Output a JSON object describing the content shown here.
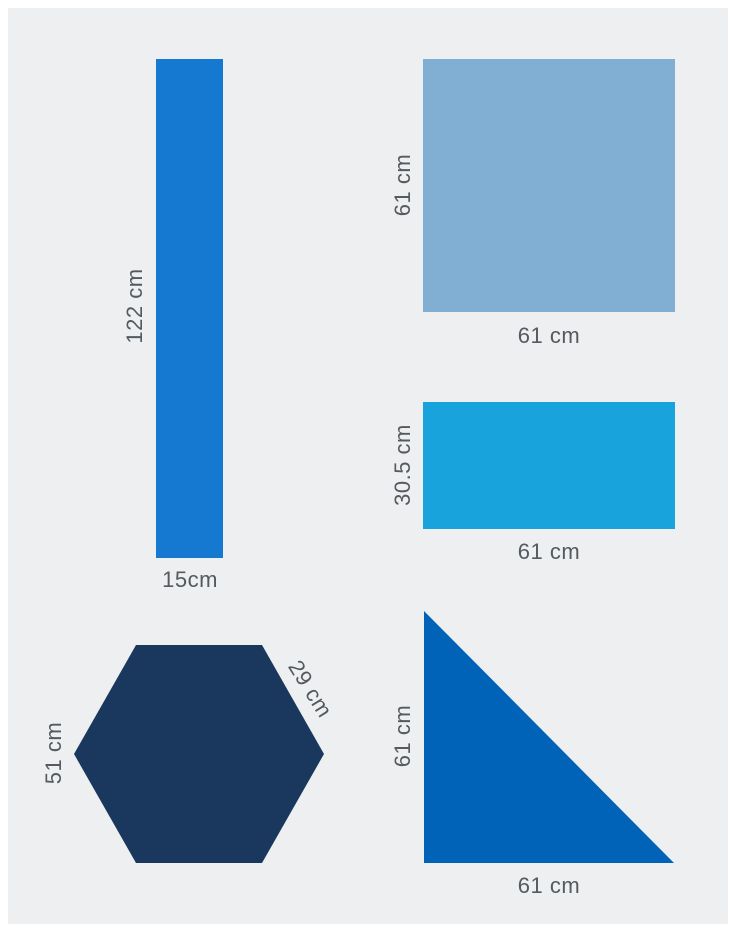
{
  "colors": {
    "background": "#edeff0",
    "text": "#555a60",
    "tall_rect": "#1679d1",
    "square": "#80afd3",
    "small_rect": "#19a3dd",
    "hexagon": "#1a385e",
    "triangle": "#0163b8"
  },
  "shapes": {
    "tall_rect": {
      "height_label": "122 cm",
      "width_label": "15cm"
    },
    "square": {
      "height_label": "61 cm",
      "width_label": "61 cm"
    },
    "small_rect": {
      "height_label": "30.5 cm",
      "width_label": "61 cm"
    },
    "hexagon": {
      "height_label": "51 cm",
      "side_label": "29 cm"
    },
    "triangle": {
      "height_label": "61 cm",
      "base_label": "61 cm"
    }
  }
}
